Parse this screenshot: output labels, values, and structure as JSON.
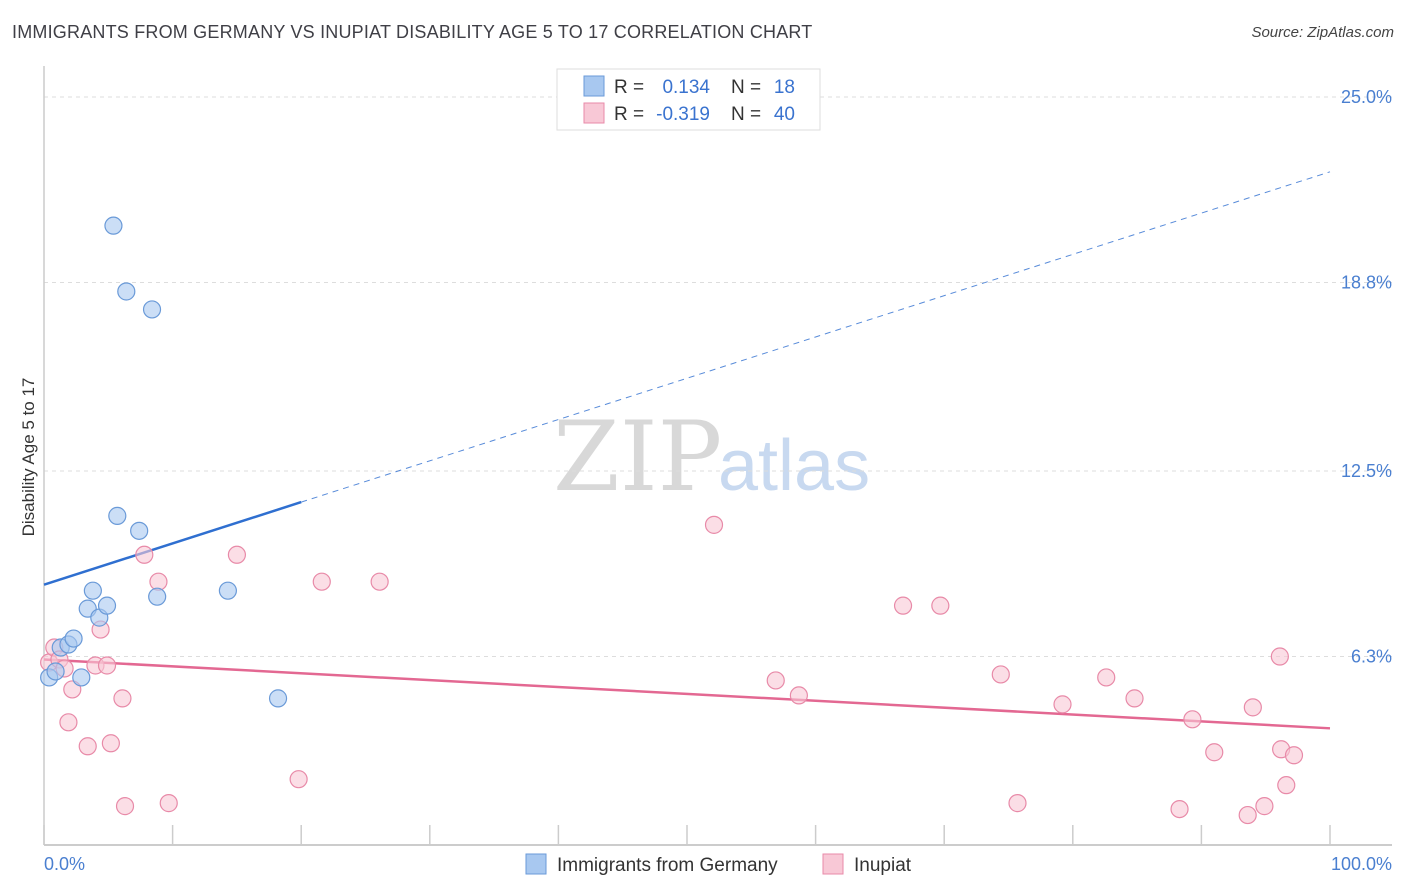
{
  "title": "IMMIGRANTS FROM GERMANY VS INUPIAT DISABILITY AGE 5 TO 17 CORRELATION CHART",
  "source": "Source: ZipAtlas.com",
  "watermark": {
    "zip": "ZIP",
    "atlas": "atlas"
  },
  "chart_data": {
    "type": "scatter",
    "title": "IMMIGRANTS FROM GERMANY VS INUPIAT DISABILITY AGE 5 TO 17 CORRELATION CHART",
    "xlabel": "",
    "ylabel": "Disability Age 5 to 17",
    "xlim": [
      0,
      100
    ],
    "ylim": [
      0,
      25.0
    ],
    "x_tick_labels": {
      "min": "0.0%",
      "max": "100.0%"
    },
    "y_ticks": [
      {
        "value": 25.0,
        "label": "25.0%"
      },
      {
        "value": 18.8,
        "label": "18.8%"
      },
      {
        "value": 12.5,
        "label": "12.5%"
      },
      {
        "value": 6.3,
        "label": "6.3%"
      }
    ],
    "legend": [
      {
        "r_label": "R =",
        "r_value": "0.134",
        "n_label": "N =",
        "n_value": "18"
      },
      {
        "r_label": "R =",
        "r_value": "-0.319",
        "n_label": "N =",
        "n_value": "40"
      }
    ],
    "series": [
      {
        "name": "Immigrants from Germany",
        "color": "#a8c8f0",
        "stroke": "#6a9ad8",
        "line_color": "#2f6fd0",
        "trend": {
          "x0": 0,
          "y0": 8.7,
          "x1": 100,
          "y1": 22.5,
          "solid_until_x": 20
        },
        "points": [
          [
            0.4,
            5.6
          ],
          [
            0.9,
            5.8
          ],
          [
            1.3,
            6.6
          ],
          [
            1.9,
            6.7
          ],
          [
            2.3,
            6.9
          ],
          [
            2.9,
            5.6
          ],
          [
            3.4,
            7.9
          ],
          [
            3.8,
            8.5
          ],
          [
            4.3,
            7.6
          ],
          [
            4.9,
            8.0
          ],
          [
            5.4,
            20.7
          ],
          [
            5.7,
            11.0
          ],
          [
            6.4,
            18.5
          ],
          [
            7.4,
            10.5
          ],
          [
            8.4,
            17.9
          ],
          [
            8.8,
            8.3
          ],
          [
            14.3,
            8.5
          ],
          [
            18.2,
            4.9
          ]
        ]
      },
      {
        "name": "Inupiat",
        "color": "#f8c8d6",
        "stroke": "#e88aa8",
        "line_color": "#e36892",
        "trend": {
          "x0": 0,
          "y0": 6.2,
          "x1": 100,
          "y1": 3.9,
          "solid_until_x": 100
        },
        "points": [
          [
            0.4,
            6.1
          ],
          [
            0.8,
            6.6
          ],
          [
            1.2,
            6.2
          ],
          [
            1.6,
            5.9
          ],
          [
            1.9,
            4.1
          ],
          [
            2.2,
            5.2
          ],
          [
            3.4,
            3.3
          ],
          [
            4.0,
            6.0
          ],
          [
            4.4,
            7.2
          ],
          [
            4.9,
            6.0
          ],
          [
            5.2,
            3.4
          ],
          [
            6.1,
            4.9
          ],
          [
            6.3,
            1.3
          ],
          [
            7.8,
            9.7
          ],
          [
            8.9,
            8.8
          ],
          [
            9.7,
            1.4
          ],
          [
            15.0,
            9.7
          ],
          [
            19.8,
            2.2
          ],
          [
            21.6,
            8.8
          ],
          [
            26.1,
            8.8
          ],
          [
            52.1,
            10.7
          ],
          [
            56.9,
            5.5
          ],
          [
            58.7,
            5.0
          ],
          [
            66.8,
            8.0
          ],
          [
            69.7,
            8.0
          ],
          [
            74.4,
            5.7
          ],
          [
            75.7,
            1.4
          ],
          [
            79.2,
            4.7
          ],
          [
            82.6,
            5.6
          ],
          [
            84.8,
            4.9
          ],
          [
            88.3,
            1.2
          ],
          [
            89.3,
            4.2
          ],
          [
            91.0,
            3.1
          ],
          [
            93.6,
            1.0
          ],
          [
            94.0,
            4.6
          ],
          [
            94.9,
            1.3
          ],
          [
            96.1,
            6.3
          ],
          [
            96.2,
            3.2
          ],
          [
            96.6,
            2.0
          ],
          [
            97.2,
            3.0
          ]
        ]
      }
    ]
  }
}
